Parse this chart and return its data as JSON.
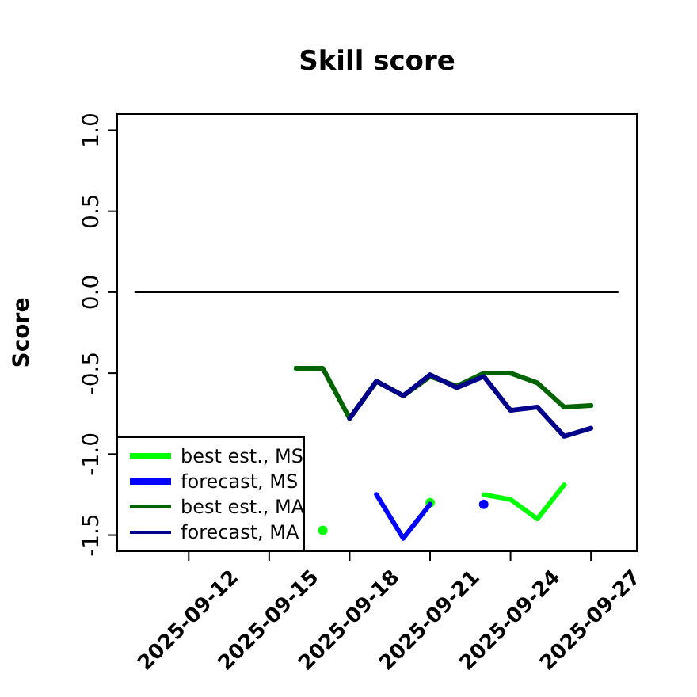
{
  "chart_data": {
    "type": "line",
    "title": "Skill score",
    "ylabel": "Score",
    "x": [
      "2025-09-16",
      "2025-09-17",
      "2025-09-18",
      "2025-09-19",
      "2025-09-20",
      "2025-09-21",
      "2025-09-22",
      "2025-09-23",
      "2025-09-24",
      "2025-09-25",
      "2025-09-26",
      "2025-09-27"
    ],
    "xlim": [
      "2025-09-09T08:00",
      "2025-09-28T17:00"
    ],
    "xticks": [
      {
        "value": "2025-09-12",
        "label": "2025-09-12"
      },
      {
        "value": "2025-09-15",
        "label": "2025-09-15"
      },
      {
        "value": "2025-09-18",
        "label": "2025-09-18"
      },
      {
        "value": "2025-09-21",
        "label": "2025-09-21"
      },
      {
        "value": "2025-09-24",
        "label": "2025-09-24"
      },
      {
        "value": "2025-09-27",
        "label": "2025-09-27"
      }
    ],
    "ylim": [
      -1.6,
      1.1
    ],
    "yticks": [
      {
        "value": -1.5,
        "label": "-1.5"
      },
      {
        "value": -1,
        "label": "-1.0"
      },
      {
        "value": -0.5,
        "label": "-0.5"
      },
      {
        "value": 0,
        "label": "0.0"
      },
      {
        "value": 0.5,
        "label": "0.5"
      },
      {
        "value": 1,
        "label": "1.0"
      }
    ],
    "series": [
      {
        "name": "best est., MS",
        "color": "#00ff00",
        "values": [
          null,
          -1.47,
          null,
          null,
          null,
          -1.3,
          null,
          -1.25,
          -1.28,
          -1.4,
          -1.19,
          null
        ]
      },
      {
        "name": "forecast, MS",
        "color": "#0000ff",
        "values": [
          null,
          null,
          null,
          -1.25,
          -1.52,
          -1.31,
          null,
          -1.31,
          null,
          null,
          null,
          null
        ]
      },
      {
        "name": "best est., MA",
        "color": "#006400",
        "values": [
          -0.47,
          -0.47,
          -0.78,
          -0.55,
          -0.64,
          -0.52,
          -0.58,
          -0.5,
          -0.5,
          -0.56,
          -0.71,
          -0.7
        ]
      },
      {
        "name": "forecast, MA",
        "color": "#00008b",
        "values": [
          null,
          null,
          -0.78,
          -0.55,
          -0.64,
          -0.51,
          -0.59,
          -0.52,
          -0.73,
          -0.71,
          -0.89,
          -0.84
        ]
      },
      {
        "color": "#000000",
        "x": [
          "2025-09-10",
          "2025-09-28"
        ],
        "values": [
          0,
          0
        ]
      }
    ],
    "legend": "bottom left",
    "grid": false,
    "line_style": "solid",
    "marker": "none"
  }
}
